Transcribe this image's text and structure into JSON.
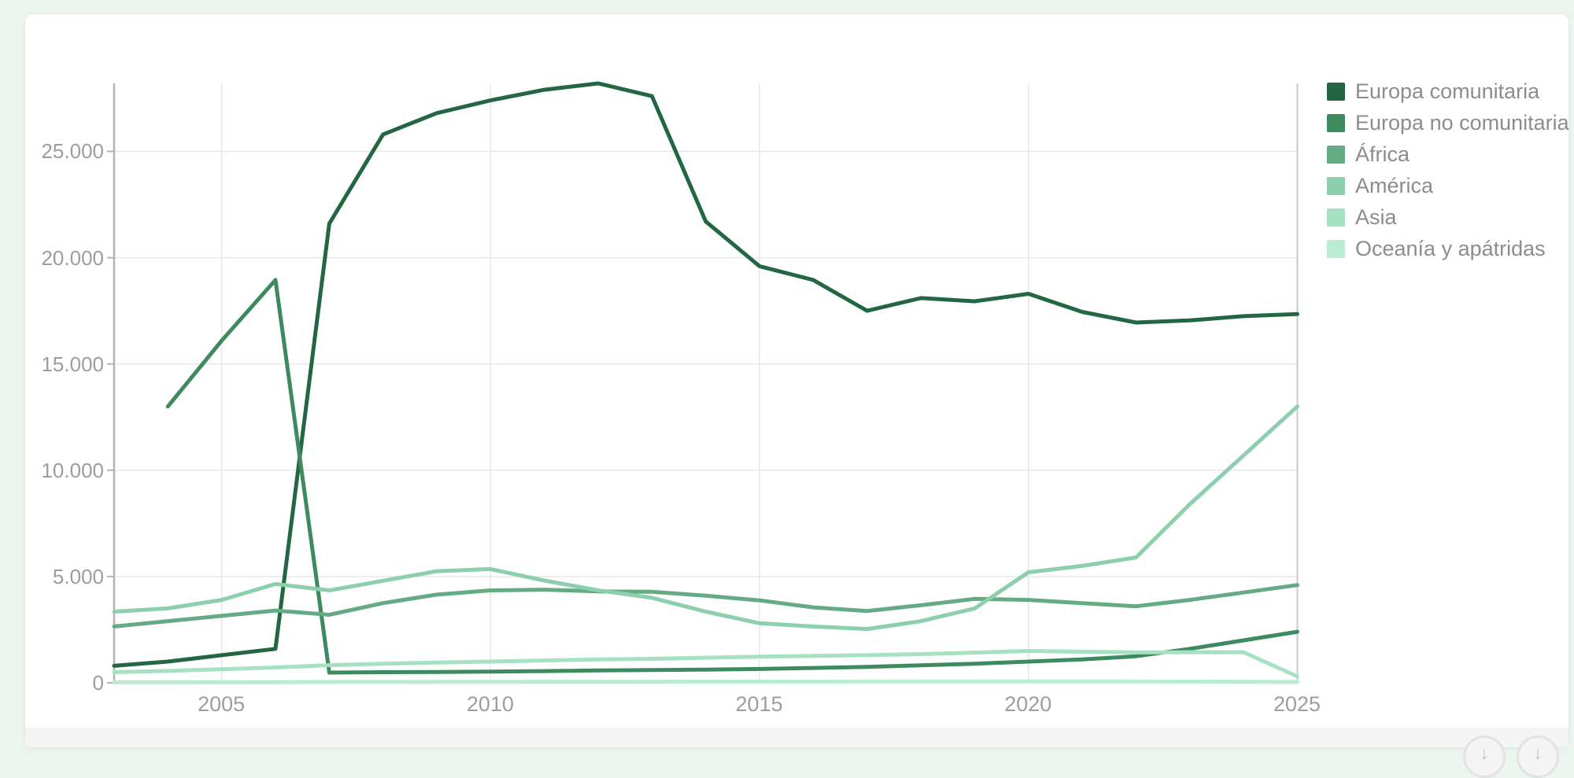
{
  "page": {
    "background_color": "#ecf4ee",
    "card_color": "#ffffff",
    "footer_color": "#f4f4f4"
  },
  "chart_data": {
    "type": "line",
    "title": "",
    "xlabel": "",
    "ylabel": "",
    "grid": true,
    "legend_position": "right",
    "xlim": [
      2003,
      2025
    ],
    "ylim": [
      0,
      28200
    ],
    "x_ticks": [
      2005,
      2010,
      2015,
      2020,
      2025
    ],
    "x_tick_labels": [
      "2005",
      "2010",
      "2015",
      "2020",
      "2025"
    ],
    "y_ticks": [
      0,
      5000,
      10000,
      15000,
      20000,
      25000
    ],
    "y_tick_labels": [
      "0",
      "5.000",
      "10.000",
      "15.000",
      "20.000",
      "25.000"
    ],
    "x": [
      2003,
      2004,
      2005,
      2006,
      2007,
      2008,
      2009,
      2010,
      2011,
      2012,
      2013,
      2014,
      2015,
      2016,
      2017,
      2018,
      2019,
      2020,
      2021,
      2022,
      2023,
      2024,
      2025
    ],
    "series": [
      {
        "name": "Europa comunitaria",
        "color": "#226741",
        "values": [
          800,
          1000,
          1300,
          1600,
          21600,
          25800,
          26800,
          27400,
          27900,
          28200,
          27600,
          21700,
          19600,
          18950,
          17500,
          18100,
          17950,
          18300,
          17450,
          16950,
          17050,
          17250,
          17350
        ]
      },
      {
        "name": "Europa no comunitaria",
        "color": "#3d8a5f",
        "values": [
          null,
          13000,
          16100,
          18950,
          480,
          500,
          510,
          530,
          550,
          580,
          600,
          620,
          650,
          700,
          750,
          820,
          900,
          1000,
          1100,
          1250,
          1600,
          2000,
          2400
        ]
      },
      {
        "name": "África",
        "color": "#64aa82",
        "values": [
          2650,
          2900,
          3150,
          3400,
          3200,
          3750,
          4150,
          4350,
          4380,
          4300,
          4280,
          4100,
          3880,
          3550,
          3380,
          3650,
          3950,
          3900,
          3750,
          3600,
          3900,
          4250,
          4600
        ]
      },
      {
        "name": "América",
        "color": "#8ccfac",
        "values": [
          3350,
          3500,
          3900,
          4650,
          4350,
          4800,
          5250,
          5350,
          4810,
          4350,
          4000,
          3350,
          2800,
          2650,
          2530,
          2900,
          3500,
          5200,
          5500,
          5900,
          8400,
          10700,
          13000
        ]
      },
      {
        "name": "Asia",
        "color": "#a6e1c1",
        "values": [
          500,
          560,
          640,
          720,
          830,
          900,
          950,
          1000,
          1050,
          1100,
          1130,
          1180,
          1230,
          1270,
          1300,
          1350,
          1420,
          1500,
          1460,
          1430,
          1440,
          1440,
          300
        ]
      },
      {
        "name": "Oceanía y apátridas",
        "color": "#b9ecd1",
        "values": [
          30,
          30,
          35,
          35,
          40,
          40,
          45,
          45,
          50,
          50,
          50,
          55,
          55,
          55,
          60,
          60,
          60,
          65,
          65,
          60,
          55,
          50,
          40
        ]
      }
    ]
  },
  "footer": {
    "buttons": [
      {
        "glyph": "↓"
      },
      {
        "glyph": "↓"
      }
    ]
  }
}
